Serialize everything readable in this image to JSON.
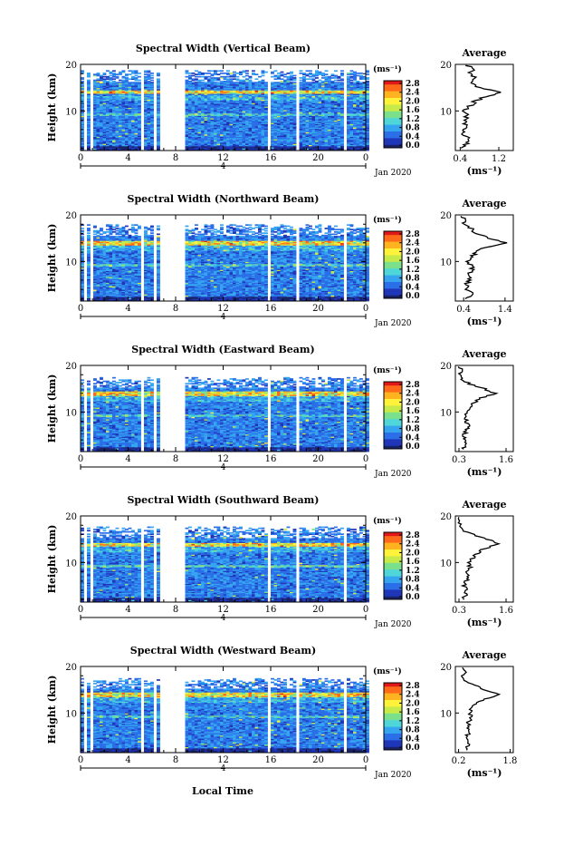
{
  "figure": {
    "xlabel": "Local Time",
    "x_axis_note": "4",
    "date_label": "Jan 2020",
    "avg_xlabel": "(ms⁻¹)",
    "colorbar_units": "(ms⁻¹)",
    "colorbar_ticks": [
      "0.0",
      "0.4",
      "0.8",
      "1.2",
      "1.6",
      "2.0",
      "2.4",
      "2.8"
    ],
    "colormap": [
      "#1a2266",
      "#2036b8",
      "#2b6fe8",
      "#35a5f0",
      "#4fd6d8",
      "#7ae08c",
      "#c8ea48",
      "#fff23a",
      "#ffb31f",
      "#ff6a1a",
      "#e01818"
    ]
  },
  "chart_data": [
    {
      "type": "heatmap",
      "title": "Spectral Width (Vertical Beam)",
      "ylabel": "Height (km)",
      "xlabel": "Local Time",
      "x_ticks": [
        "0",
        "4",
        "8",
        "12",
        "16",
        "20",
        "0"
      ],
      "xlim": [
        0,
        24
      ],
      "y_ticks": [
        "10",
        "20"
      ],
      "ylim": [
        1.5,
        20
      ],
      "colorbar_range": [
        0.0,
        2.8
      ],
      "gaps_hours": [
        [
          0.15,
          0.35
        ],
        [
          0.8,
          1.0
        ],
        [
          5.0,
          5.2
        ],
        [
          6.0,
          6.3
        ],
        [
          6.6,
          8.7
        ],
        [
          15.7,
          16.0
        ],
        [
          18.1,
          18.4
        ],
        [
          21.9,
          22.2
        ]
      ],
      "data_top_km": 18.7,
      "high_band_km": [
        13.6,
        14.3
      ],
      "average": {
        "title": "Average",
        "xlabel": "(ms⁻¹)",
        "x_ticks": [
          "0.4",
          "1.2"
        ],
        "xlim": [
          0.3,
          1.5
        ],
        "y_ticks": [
          "10",
          "20"
        ],
        "ylim": [
          1.5,
          20
        ],
        "height_km": [
          2,
          3,
          4,
          5,
          6,
          7,
          8,
          9,
          10,
          11,
          12,
          13,
          14,
          15,
          16,
          17,
          18,
          19,
          20
        ],
        "value": [
          0.45,
          0.55,
          0.6,
          0.45,
          0.5,
          0.52,
          0.5,
          0.55,
          0.5,
          0.6,
          0.7,
          0.9,
          1.3,
          0.8,
          0.6,
          0.7,
          0.6,
          0.7,
          0.5
        ]
      }
    },
    {
      "type": "heatmap",
      "title": "Spectral Width (Northward Beam)",
      "ylabel": "Height (km)",
      "xlabel": "Local Time",
      "x_ticks": [
        "0",
        "4",
        "8",
        "12",
        "16",
        "20",
        "0"
      ],
      "xlim": [
        0,
        24
      ],
      "y_ticks": [
        "10",
        "20"
      ],
      "ylim": [
        1.5,
        20
      ],
      "colorbar_range": [
        0.0,
        2.8
      ],
      "gaps_hours": [
        [
          0.15,
          0.35
        ],
        [
          0.8,
          1.0
        ],
        [
          5.0,
          5.2
        ],
        [
          6.0,
          6.3
        ],
        [
          6.6,
          8.7
        ],
        [
          15.7,
          16.0
        ],
        [
          18.1,
          18.4
        ],
        [
          21.9,
          22.2
        ]
      ],
      "data_top_km": 17.8,
      "high_band_km": [
        13.5,
        14.4
      ],
      "average": {
        "title": "Average",
        "xlabel": "(ms⁻¹)",
        "x_ticks": [
          "0.4",
          "1.4"
        ],
        "xlim": [
          0.2,
          1.6
        ],
        "y_ticks": [
          "10",
          "20"
        ],
        "ylim": [
          1.5,
          20
        ],
        "height_km": [
          2,
          3,
          4,
          5,
          6,
          7,
          8,
          9,
          10,
          11,
          12,
          13,
          14,
          15,
          16,
          17,
          18,
          19,
          20
        ],
        "value": [
          0.45,
          0.6,
          0.5,
          0.45,
          0.55,
          0.5,
          0.6,
          0.6,
          0.5,
          0.6,
          0.7,
          0.9,
          1.4,
          1.0,
          0.7,
          0.6,
          0.4,
          0.5,
          0.3
        ]
      }
    },
    {
      "type": "heatmap",
      "title": "Spectral Width (Eastward Beam)",
      "ylabel": "Height (km)",
      "xlabel": "Local Time",
      "x_ticks": [
        "0",
        "4",
        "8",
        "12",
        "16",
        "20",
        "0"
      ],
      "xlim": [
        0,
        24
      ],
      "y_ticks": [
        "10",
        "20"
      ],
      "ylim": [
        1.5,
        20
      ],
      "colorbar_range": [
        0.0,
        2.8
      ],
      "gaps_hours": [
        [
          0.15,
          0.35
        ],
        [
          0.8,
          1.0
        ],
        [
          5.0,
          5.2
        ],
        [
          6.0,
          6.3
        ],
        [
          6.6,
          8.7
        ],
        [
          15.7,
          16.0
        ],
        [
          18.1,
          18.4
        ],
        [
          21.9,
          22.2
        ]
      ],
      "data_top_km": 17.5,
      "high_band_km": [
        13.3,
        14.3
      ],
      "average": {
        "title": "Average",
        "xlabel": "(ms⁻¹)",
        "x_ticks": [
          "0.3",
          "1.6"
        ],
        "xlim": [
          0.2,
          1.8
        ],
        "y_ticks": [
          "10",
          "20"
        ],
        "ylim": [
          1.5,
          20
        ],
        "height_km": [
          2,
          3,
          4,
          5,
          6,
          7,
          8,
          9,
          10,
          11,
          12,
          13,
          14,
          15,
          16,
          17,
          18,
          19,
          20
        ],
        "value": [
          0.4,
          0.5,
          0.5,
          0.45,
          0.5,
          0.55,
          0.5,
          0.5,
          0.5,
          0.6,
          0.7,
          0.9,
          1.3,
          1.0,
          0.6,
          0.4,
          0.3,
          0.35,
          0.3
        ]
      }
    },
    {
      "type": "heatmap",
      "title": "Spectral Width (Southward Beam)",
      "ylabel": "Height (km)",
      "xlabel": "Local Time",
      "x_ticks": [
        "0",
        "4",
        "8",
        "12",
        "16",
        "20",
        "0"
      ],
      "xlim": [
        0,
        24
      ],
      "y_ticks": [
        "10",
        "20"
      ],
      "ylim": [
        1.5,
        20
      ],
      "colorbar_range": [
        0.0,
        2.8
      ],
      "gaps_hours": [
        [
          0.15,
          0.35
        ],
        [
          0.8,
          1.0
        ],
        [
          5.0,
          5.2
        ],
        [
          6.0,
          6.3
        ],
        [
          6.6,
          8.7
        ],
        [
          15.7,
          16.0
        ],
        [
          18.1,
          18.4
        ],
        [
          21.9,
          22.2
        ]
      ],
      "data_top_km": 17.6,
      "high_band_km": [
        13.3,
        14.2
      ],
      "average": {
        "title": "Average",
        "xlabel": "(ms⁻¹)",
        "x_ticks": [
          "0.3",
          "1.6"
        ],
        "xlim": [
          0.2,
          1.8
        ],
        "y_ticks": [
          "10",
          "20"
        ],
        "ylim": [
          1.5,
          20
        ],
        "height_km": [
          2,
          3,
          4,
          5,
          6,
          7,
          8,
          9,
          10,
          11,
          12,
          13,
          14,
          15,
          16,
          17,
          18,
          19,
          20
        ],
        "value": [
          0.4,
          0.5,
          0.5,
          0.45,
          0.5,
          0.55,
          0.5,
          0.6,
          0.55,
          0.7,
          0.8,
          1.0,
          1.4,
          1.1,
          0.7,
          0.4,
          0.3,
          0.35,
          0.3
        ]
      }
    },
    {
      "type": "heatmap",
      "title": "Spectral Width (Westward Beam)",
      "ylabel": "Height (km)",
      "xlabel": "Local Time",
      "x_ticks": [
        "0",
        "4",
        "8",
        "12",
        "16",
        "20",
        "0"
      ],
      "xlim": [
        0,
        24
      ],
      "y_ticks": [
        "10",
        "20"
      ],
      "ylim": [
        1.5,
        20
      ],
      "colorbar_range": [
        0.0,
        2.8
      ],
      "gaps_hours": [
        [
          0.15,
          0.35
        ],
        [
          0.8,
          1.0
        ],
        [
          5.0,
          5.2
        ],
        [
          6.0,
          6.3
        ],
        [
          6.6,
          8.7
        ],
        [
          15.7,
          16.0
        ],
        [
          18.1,
          18.4
        ],
        [
          21.9,
          22.2
        ]
      ],
      "data_top_km": 17.5,
      "high_band_km": [
        13.4,
        14.3
      ],
      "average": {
        "title": "Average",
        "xlabel": "(ms⁻¹)",
        "x_ticks": [
          "0.2",
          "1.8"
        ],
        "xlim": [
          0.1,
          1.9
        ],
        "y_ticks": [
          "10",
          "20"
        ],
        "ylim": [
          1.5,
          20
        ],
        "height_km": [
          2,
          3,
          4,
          5,
          6,
          7,
          8,
          9,
          10,
          11,
          12,
          13,
          14,
          15,
          16,
          17,
          18,
          19,
          20
        ],
        "value": [
          0.45,
          0.5,
          0.5,
          0.45,
          0.55,
          0.5,
          0.5,
          0.6,
          0.55,
          0.6,
          0.7,
          1.0,
          1.5,
          1.0,
          0.7,
          0.4,
          0.35,
          0.4,
          0.3
        ]
      }
    }
  ]
}
